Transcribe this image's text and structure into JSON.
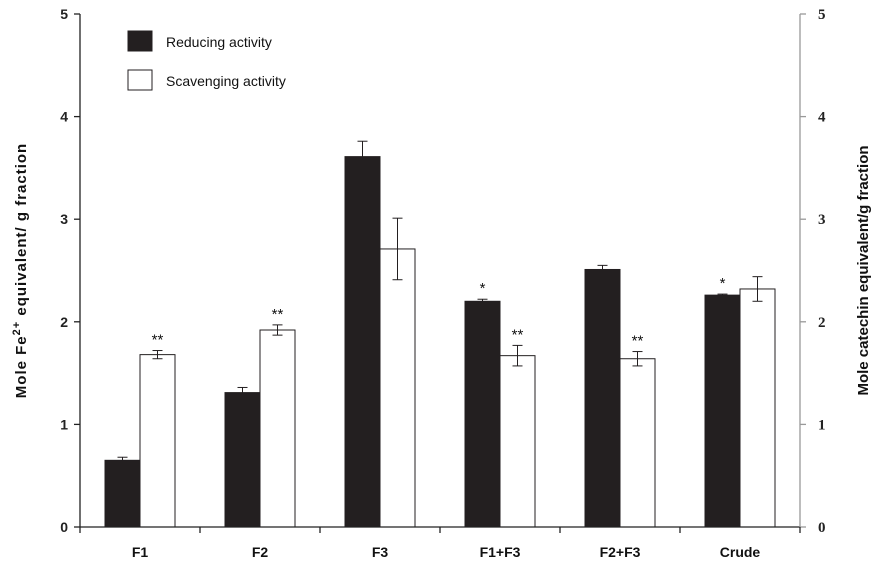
{
  "chart_data": {
    "type": "bar",
    "categories": [
      "F1",
      "F2",
      "F3",
      "F1+F3",
      "F2+F3",
      "Crude"
    ],
    "series": [
      {
        "name": "Reducing activity",
        "color": "#231f20",
        "values": [
          0.65,
          1.31,
          3.61,
          2.2,
          2.51,
          2.26
        ],
        "errors": [
          0.03,
          0.05,
          0.15,
          0.02,
          0.04,
          0.01
        ],
        "annotations": [
          "",
          "",
          "",
          "*",
          "",
          "*"
        ]
      },
      {
        "name": "Scavenging activity",
        "color": "#ffffff",
        "values": [
          1.68,
          1.92,
          2.71,
          1.67,
          1.64,
          2.32
        ],
        "errors": [
          0.04,
          0.05,
          0.3,
          0.1,
          0.07,
          0.12
        ],
        "annotations": [
          "**",
          "**",
          "",
          "**",
          "**",
          ""
        ]
      }
    ],
    "ylim": [
      0,
      5
    ],
    "yticks": [
      "0",
      "1",
      "2",
      "3",
      "4",
      "5"
    ],
    "y2ticks": [
      "0",
      "1",
      "2",
      "3",
      "4",
      "5"
    ],
    "ylabel": "Mole Fe",
    "ylabel_sup": "2+",
    "ylabel_rest": " equivalent/ g fraction",
    "y2label": "Mole catechin equivalent/g fraction",
    "legend_position": "top-left",
    "grid": false
  }
}
